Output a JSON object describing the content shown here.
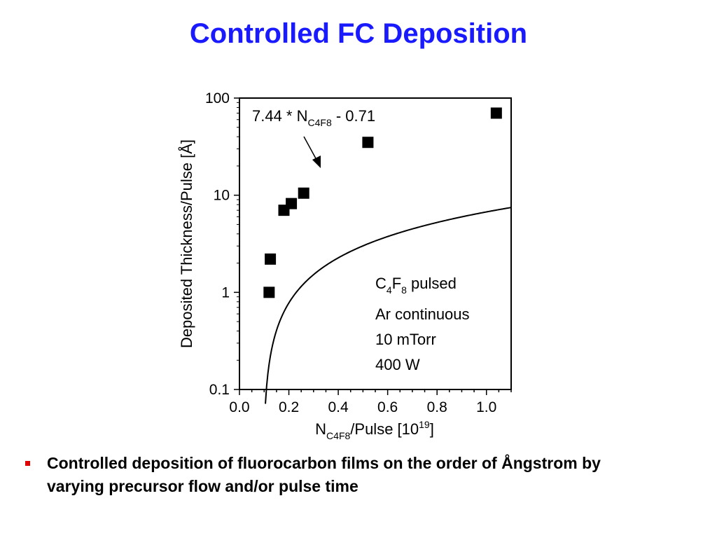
{
  "slide": {
    "title": "Controlled FC Deposition",
    "bullet": "Controlled deposition of fluorocarbon films on the order of Ångstrom by varying precursor flow and/or pulse time"
  },
  "colors": {
    "title": "#1a1aff",
    "bullet_marker": "#e00000",
    "ink": "#000000"
  },
  "chart_data": {
    "type": "scatter",
    "x_label": {
      "main": "N",
      "sub": "C4F8",
      "rest": "/Pulse [10",
      "sup": "19",
      "end": "]"
    },
    "y_label": "Deposited Thickness/Pulse [Å]",
    "x_range": [
      0.0,
      1.1
    ],
    "y_range": [
      0.1,
      100
    ],
    "y_scale": "log",
    "x_ticks": [
      "0.0",
      "0.2",
      "0.4",
      "0.6",
      "0.8",
      "1.0"
    ],
    "y_ticks": [
      "0.1",
      "1",
      "10",
      "100"
    ],
    "grid": false,
    "series": [
      {
        "marker": "filled-square",
        "points": [
          {
            "x": 0.12,
            "y": 1.0
          },
          {
            "x": 0.125,
            "y": 2.2
          },
          {
            "x": 0.18,
            "y": 7.0
          },
          {
            "x": 0.21,
            "y": 8.2
          },
          {
            "x": 0.26,
            "y": 10.5
          },
          {
            "x": 0.52,
            "y": 35
          },
          {
            "x": 1.04,
            "y": 70
          }
        ]
      }
    ],
    "fit": {
      "slope": 7.44,
      "intercept": -0.71,
      "x_start": 0.105,
      "x_end": 1.1,
      "label": {
        "main": "7.44 * N",
        "sub": "C4F8",
        "rest": " - 0.71"
      }
    },
    "annotations": {
      "line1": {
        "main": "C",
        "sub1": "4",
        "mid": "F",
        "sub2": "8",
        "rest": " pulsed"
      },
      "line2": "Ar continuous",
      "line3": "10 mTorr",
      "line4": "400 W"
    }
  }
}
